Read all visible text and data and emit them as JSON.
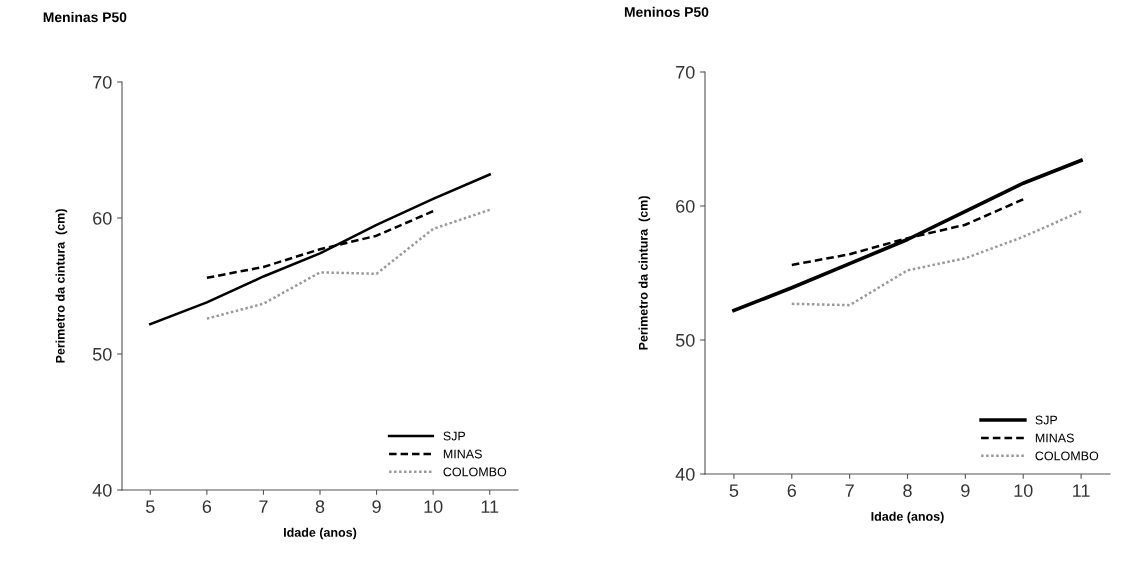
{
  "chart_data": [
    {
      "type": "line",
      "title": "Meninas P50",
      "xlabel": "Idade (anos)",
      "ylabel": "Perimetro da cintura  (cm)",
      "xlim": [
        4.5,
        11.5
      ],
      "xticks": [
        5,
        6,
        7,
        8,
        9,
        10,
        11
      ],
      "ylim": [
        40,
        70
      ],
      "yticks": [
        40,
        50,
        60,
        70
      ],
      "grid": false,
      "legend": "bottom right",
      "marker": "none",
      "series": [
        {
          "name": "SJP",
          "color": "#000000",
          "line_style": "solid",
          "x": [
            5,
            6,
            7,
            8,
            9,
            10,
            11
          ],
          "values": [
            52.2,
            53.8,
            55.7,
            57.4,
            59.5,
            61.4,
            63.2
          ]
        },
        {
          "name": "MINAS",
          "color": "#000000",
          "line_style": "dashed",
          "x": [
            6,
            7,
            8,
            9,
            10
          ],
          "values": [
            55.6,
            56.4,
            57.7,
            58.7,
            60.5
          ]
        },
        {
          "name": "COLOMBO",
          "color": "#999999",
          "line_style": "dotted",
          "x": [
            6,
            7,
            8,
            9,
            10,
            11
          ],
          "values": [
            52.6,
            53.7,
            56.0,
            55.9,
            59.2,
            60.6
          ]
        }
      ]
    },
    {
      "type": "line",
      "title": "Meninos P50",
      "xlabel": "Idade (anos)",
      "ylabel": "Perimetro da cintura  (cm)",
      "xlim": [
        4.5,
        11.5
      ],
      "xticks": [
        5,
        6,
        7,
        8,
        9,
        10,
        11
      ],
      "ylim": [
        40,
        70
      ],
      "yticks": [
        40,
        50,
        60,
        70
      ],
      "grid": false,
      "legend": "bottom right",
      "marker": "none",
      "series": [
        {
          "name": "SJP",
          "color": "#000000",
          "line_style": "solid",
          "x": [
            5,
            6,
            7,
            8,
            9,
            10,
            11
          ],
          "values": [
            52.2,
            53.9,
            55.7,
            57.5,
            59.6,
            61.7,
            63.4
          ]
        },
        {
          "name": "MINAS",
          "color": "#000000",
          "line_style": "dashed",
          "x": [
            6,
            7,
            8,
            9,
            10
          ],
          "values": [
            55.6,
            56.4,
            57.6,
            58.6,
            60.5
          ]
        },
        {
          "name": "COLOMBO",
          "color": "#999999",
          "line_style": "dotted",
          "x": [
            6,
            7,
            8,
            9,
            10,
            11
          ],
          "values": [
            52.7,
            52.6,
            55.2,
            56.1,
            57.7,
            59.6
          ]
        }
      ]
    }
  ]
}
